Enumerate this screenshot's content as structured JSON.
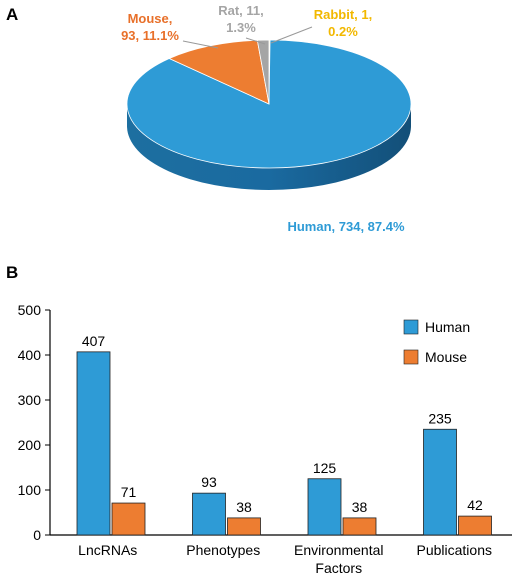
{
  "panels": {
    "a": "A",
    "b": "B"
  },
  "chart_data": [
    {
      "type": "pie",
      "slices": [
        {
          "label": "Human",
          "value": 734,
          "percent": "87.4%",
          "color": "#2e9bd6",
          "text_color": "#2e9bd6"
        },
        {
          "label": "Mouse",
          "value": 93,
          "percent": "11.1%",
          "color": "#ed7d31",
          "text_color": "#e8702a"
        },
        {
          "label": "Rat",
          "value": 11,
          "percent": "1.3%",
          "color": "#a5a5a5",
          "text_color": "#a5a5a5"
        },
        {
          "label": "Rabbit",
          "value": 1,
          "percent": "0.2%",
          "color": "#ffc000",
          "text_color": "#f2b800"
        }
      ],
      "labels_text": [
        [
          "Mouse,",
          "93, 11.1%"
        ],
        [
          "Rat, 11,",
          "1.3%"
        ],
        [
          "Rabbit, 1,",
          "0.2%"
        ],
        [
          "Human, 734, 87.4%"
        ]
      ]
    },
    {
      "type": "bar",
      "categories": [
        [
          "LncRNAs"
        ],
        [
          "Phenotypes"
        ],
        [
          "Environmental",
          "Factors"
        ],
        [
          "Publications"
        ]
      ],
      "series": [
        {
          "name": "Human",
          "values": [
            407,
            93,
            125,
            235
          ],
          "color": "#2e9bd6"
        },
        {
          "name": "Mouse",
          "values": [
            71,
            38,
            38,
            42
          ],
          "color": "#ed7d31"
        }
      ],
      "ylim": [
        0,
        500
      ],
      "yticks": [
        "0",
        "100",
        "200",
        "300",
        "400",
        "500"
      ],
      "legend": "top-right",
      "grid": false
    }
  ]
}
